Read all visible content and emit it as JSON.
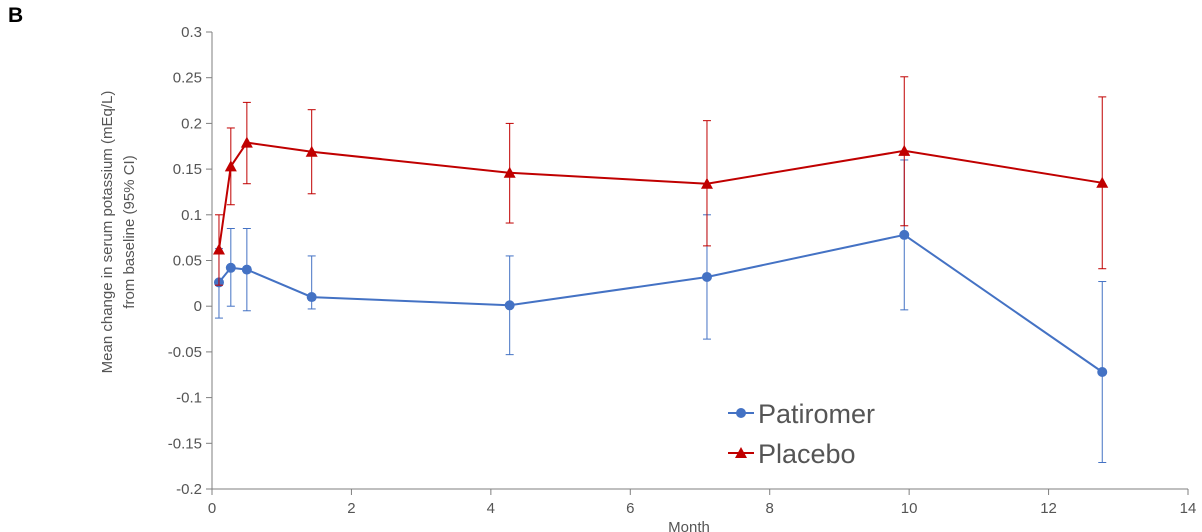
{
  "panel_label": "B",
  "chart_data": {
    "type": "line",
    "title": "",
    "xlabel": "Month",
    "ylabel": "Mean change in serum potassium (mEq/L)",
    "ylabel_line2": "from baseline (95% CI)",
    "xlim": [
      0,
      14
    ],
    "ylim": [
      -0.2,
      0.3
    ],
    "x_ticks": [
      0,
      2,
      4,
      6,
      8,
      10,
      12,
      14
    ],
    "x_tick_labels": [
      "0",
      "2",
      "4",
      "6",
      "8",
      "10",
      "12",
      "14"
    ],
    "y_ticks": [
      -0.2,
      -0.15,
      -0.1,
      -0.05,
      0,
      0.05,
      0.1,
      0.15,
      0.2,
      0.25,
      0.3
    ],
    "y_tick_labels": [
      "-0.2",
      "-0.15",
      "-0.1",
      "-0.05",
      "0",
      "0.05",
      "0.1",
      "0.15",
      "0.2",
      "0.25",
      "0.3"
    ],
    "grid": false,
    "legend_position": "bottom-center",
    "series": [
      {
        "name": "Patiromer",
        "color": "#4472C4",
        "marker": "circle",
        "x": [
          0.1,
          0.27,
          0.5,
          1.43,
          4.27,
          7.1,
          9.93,
          12.77
        ],
        "y": [
          0.026,
          0.042,
          0.04,
          0.01,
          0.001,
          0.032,
          0.078,
          -0.072
        ],
        "ci_low": [
          -0.013,
          0.0,
          -0.005,
          -0.003,
          -0.053,
          -0.036,
          -0.004,
          -0.171
        ],
        "ci_high": [
          0.063,
          0.085,
          0.085,
          0.055,
          0.055,
          0.1,
          0.16,
          0.027
        ]
      },
      {
        "name": "Placebo",
        "color": "#C00000",
        "marker": "triangle",
        "x": [
          0.1,
          0.27,
          0.5,
          1.43,
          4.27,
          7.1,
          9.93,
          12.77
        ],
        "y": [
          0.062,
          0.153,
          0.179,
          0.169,
          0.146,
          0.134,
          0.17,
          0.135
        ],
        "ci_low": [
          0.023,
          0.111,
          0.134,
          0.123,
          0.091,
          0.066,
          0.088,
          0.041
        ],
        "ci_high": [
          0.1,
          0.195,
          0.223,
          0.215,
          0.2,
          0.203,
          0.251,
          0.229
        ]
      }
    ]
  }
}
